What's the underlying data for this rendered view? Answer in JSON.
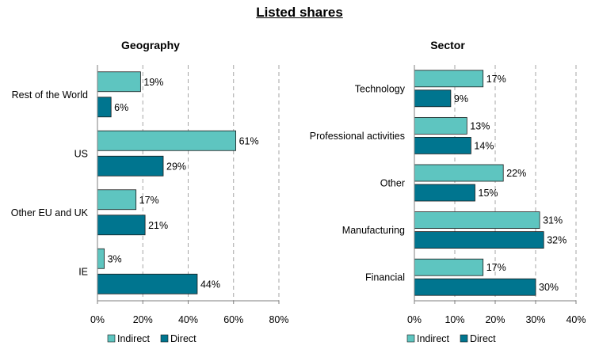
{
  "title": "Listed shares",
  "colors": {
    "indirect": "#5ec5c0",
    "direct": "#00758f",
    "grid": "#a6a6a6",
    "axis": "#7f7f7f"
  },
  "chart_data": [
    {
      "type": "bar",
      "orientation": "horizontal",
      "title": "Geography",
      "categories": [
        "Rest of the World",
        "US",
        "Other EU and UK",
        "IE"
      ],
      "series": [
        {
          "name": "Indirect",
          "values": [
            19,
            61,
            17,
            3
          ]
        },
        {
          "name": "Direct",
          "values": [
            6,
            29,
            21,
            44
          ]
        }
      ],
      "xlim": [
        0,
        80
      ],
      "ticks": [
        0,
        20,
        40,
        60,
        80
      ],
      "tick_labels": [
        "0%",
        "20%",
        "40%",
        "60%",
        "80%"
      ],
      "value_labels": [
        [
          "19%",
          "61%",
          "17%",
          "3%"
        ],
        [
          "6%",
          "29%",
          "21%",
          "44%"
        ]
      ],
      "legend": [
        "Indirect",
        "Direct"
      ],
      "legend_position": "bottom",
      "grid": "vertical dashed"
    },
    {
      "type": "bar",
      "orientation": "horizontal",
      "title": "Sector",
      "categories": [
        "Technology",
        "Professional activities",
        "Other",
        "Manufacturing",
        "Financial"
      ],
      "series": [
        {
          "name": "Indirect",
          "values": [
            17,
            13,
            22,
            31,
            17
          ]
        },
        {
          "name": "Direct",
          "values": [
            9,
            14,
            15,
            32,
            30
          ]
        }
      ],
      "xlim": [
        0,
        40
      ],
      "ticks": [
        0,
        10,
        20,
        30,
        40
      ],
      "tick_labels": [
        "0%",
        "10%",
        "20%",
        "30%",
        "40%"
      ],
      "value_labels": [
        [
          "17%",
          "13%",
          "22%",
          "31%",
          "17%"
        ],
        [
          "9%",
          "14%",
          "15%",
          "32%",
          "30%"
        ]
      ],
      "legend": [
        "Indirect",
        "Direct"
      ],
      "legend_position": "bottom",
      "grid": "vertical dashed"
    }
  ]
}
